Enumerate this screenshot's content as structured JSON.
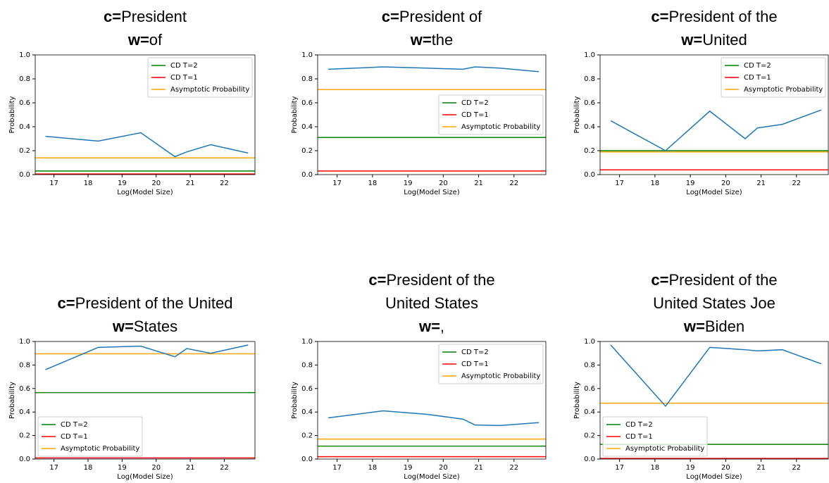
{
  "chart_data": [
    {
      "type": "line",
      "title_lines": [
        [
          {
            "text": "c=",
            "bold": true
          },
          {
            "text": "President"
          }
        ],
        [
          {
            "text": "w=",
            "bold": true
          },
          {
            "text": "of"
          }
        ]
      ],
      "x": [
        16.75,
        18.3,
        19.55,
        20.55,
        20.9,
        21.6,
        22.7
      ],
      "series": [
        {
          "color": "#1f77b4",
          "values": [
            0.32,
            0.28,
            0.35,
            0.15,
            0.19,
            0.25,
            0.18
          ]
        }
      ],
      "reference_lines": [
        {
          "name": "CD T=2",
          "color": "green",
          "value": 0.03
        },
        {
          "name": "CD T=1",
          "color": "red",
          "value": 0.005
        },
        {
          "name": "Asymptotic Probability",
          "color": "orange",
          "value": 0.14
        }
      ],
      "legend": "upper right",
      "xlabel": "Log(Model Size)",
      "ylabel": "Probability",
      "xlim": [
        16.45,
        22.9
      ],
      "xticks": [
        17,
        18,
        19,
        20,
        21,
        22
      ],
      "ylim": [
        0,
        1
      ],
      "yticks": [
        {
          "value": 0,
          "label": "0.0"
        },
        0.2,
        0.4,
        0.6,
        0.8,
        {
          "value": 1,
          "label": "1.0"
        }
      ]
    },
    {
      "type": "line",
      "title_lines": [
        [
          {
            "text": "c=",
            "bold": true
          },
          {
            "text": "President of"
          }
        ],
        [
          {
            "text": "w=",
            "bold": true
          },
          {
            "text": "the"
          }
        ]
      ],
      "x": [
        16.75,
        18.3,
        19.55,
        20.55,
        20.9,
        21.6,
        22.7
      ],
      "series": [
        {
          "color": "#1f77b4",
          "values": [
            0.88,
            0.9,
            0.89,
            0.88,
            0.9,
            0.89,
            0.86
          ]
        }
      ],
      "reference_lines": [
        {
          "name": "CD T=2",
          "color": "green",
          "value": 0.31
        },
        {
          "name": "CD T=1",
          "color": "red",
          "value": 0.03
        },
        {
          "name": "Asymptotic Probability",
          "color": "orange",
          "value": 0.71
        }
      ],
      "legend": "center right",
      "xlabel": "Log(Model Size)",
      "ylabel": "Probability",
      "xlim": [
        16.45,
        22.9
      ],
      "xticks": [
        17,
        18,
        19,
        20,
        21,
        22
      ],
      "ylim": [
        0,
        1
      ],
      "yticks": [
        {
          "value": 0,
          "label": "0.0"
        },
        0.2,
        0.4,
        0.6,
        0.8,
        {
          "value": 1,
          "label": "1.0"
        }
      ]
    },
    {
      "type": "line",
      "title_lines": [
        [
          {
            "text": "c=",
            "bold": true
          },
          {
            "text": "President of the"
          }
        ],
        [
          {
            "text": "w=",
            "bold": true
          },
          {
            "text": "United"
          }
        ]
      ],
      "x": [
        16.75,
        18.3,
        19.55,
        20.55,
        20.9,
        21.6,
        22.7
      ],
      "series": [
        {
          "color": "#1f77b4",
          "values": [
            0.45,
            0.2,
            0.53,
            0.3,
            0.39,
            0.42,
            0.54
          ]
        }
      ],
      "reference_lines": [
        {
          "name": "CD T=2",
          "color": "green",
          "value": 0.2
        },
        {
          "name": "CD T=1",
          "color": "red",
          "value": 0.04
        },
        {
          "name": "Asymptotic Probability",
          "color": "orange",
          "value": 0.19
        }
      ],
      "legend": "upper right",
      "xlabel": "Log(Model Size)",
      "ylabel": "Probability",
      "xlim": [
        16.45,
        22.9
      ],
      "xticks": [
        17,
        18,
        19,
        20,
        21,
        22
      ],
      "ylim": [
        0,
        1
      ],
      "yticks": [
        {
          "value": 0,
          "label": "0.0"
        },
        0.2,
        0.4,
        0.6,
        0.8,
        {
          "value": 1,
          "label": "1.0"
        }
      ]
    },
    {
      "type": "line",
      "title_lines": [
        [
          {
            "text": "c=",
            "bold": true
          },
          {
            "text": "President of the United"
          }
        ],
        [
          {
            "text": "w=",
            "bold": true
          },
          {
            "text": "States"
          }
        ]
      ],
      "x": [
        16.75,
        18.3,
        19.55,
        20.55,
        20.9,
        21.6,
        22.7
      ],
      "series": [
        {
          "color": "#1f77b4",
          "values": [
            0.76,
            0.95,
            0.96,
            0.87,
            0.94,
            0.9,
            0.97
          ]
        }
      ],
      "reference_lines": [
        {
          "name": "CD T=2",
          "color": "green",
          "value": 0.565
        },
        {
          "name": "CD T=1",
          "color": "red",
          "value": 0.01
        },
        {
          "name": "Asymptotic Probability",
          "color": "orange",
          "value": 0.895
        }
      ],
      "legend": "lower left",
      "xlabel": "Log(Model Size)",
      "ylabel": "Probability",
      "xlim": [
        16.45,
        22.9
      ],
      "xticks": [
        17,
        18,
        19,
        20,
        21,
        22
      ],
      "ylim": [
        0,
        1
      ],
      "yticks": [
        {
          "value": 0,
          "label": "0.0"
        },
        0.2,
        0.4,
        0.6,
        0.8,
        {
          "value": 1,
          "label": "1.0"
        }
      ]
    },
    {
      "type": "line",
      "title_lines": [
        [
          {
            "text": "c=",
            "bold": true
          },
          {
            "text": "President of the"
          }
        ],
        [
          {
            "text": "United States"
          }
        ],
        [
          {
            "text": "w=",
            "bold": true
          },
          {
            "text": ","
          }
        ]
      ],
      "x": [
        16.75,
        18.3,
        19.55,
        20.55,
        20.9,
        21.6,
        22.7
      ],
      "series": [
        {
          "color": "#1f77b4",
          "values": [
            0.35,
            0.41,
            0.38,
            0.34,
            0.29,
            0.285,
            0.31
          ]
        }
      ],
      "reference_lines": [
        {
          "name": "CD T=2",
          "color": "green",
          "value": 0.11
        },
        {
          "name": "CD T=1",
          "color": "red",
          "value": 0.02
        },
        {
          "name": "Asymptotic Probability",
          "color": "orange",
          "value": 0.17
        }
      ],
      "legend": "upper right",
      "xlabel": "Log(Model Size)",
      "ylabel": "Probability",
      "xlim": [
        16.45,
        22.9
      ],
      "xticks": [
        17,
        18,
        19,
        20,
        21,
        22
      ],
      "ylim": [
        0,
        1
      ],
      "yticks": [
        {
          "value": 0,
          "label": "0.0"
        },
        0.2,
        0.4,
        0.6,
        0.8,
        {
          "value": 1,
          "label": "1.0"
        }
      ]
    },
    {
      "type": "line",
      "title_lines": [
        [
          {
            "text": "c=",
            "bold": true
          },
          {
            "text": "President of the"
          }
        ],
        [
          {
            "text": "United States Joe"
          }
        ],
        [
          {
            "text": "w=",
            "bold": true
          },
          {
            "text": "Biden"
          }
        ]
      ],
      "x": [
        16.75,
        18.3,
        19.55,
        20.55,
        20.9,
        21.6,
        22.7
      ],
      "series": [
        {
          "color": "#1f77b4",
          "values": [
            0.97,
            0.45,
            0.95,
            0.93,
            0.92,
            0.93,
            0.81
          ]
        }
      ],
      "reference_lines": [
        {
          "name": "CD T=2",
          "color": "green",
          "value": 0.125
        },
        {
          "name": "CD T=1",
          "color": "red",
          "value": 0.005
        },
        {
          "name": "Asymptotic Probability",
          "color": "orange",
          "value": 0.475
        }
      ],
      "legend": "lower left",
      "xlabel": "Log(Model Size)",
      "ylabel": "Probability",
      "xlim": [
        16.45,
        22.9
      ],
      "xticks": [
        17,
        18,
        19,
        20,
        21,
        22
      ],
      "ylim": [
        0,
        1
      ],
      "yticks": [
        {
          "value": 0,
          "label": "0.0"
        },
        0.2,
        0.4,
        0.6,
        0.8,
        {
          "value": 1,
          "label": "1.0"
        }
      ]
    }
  ]
}
